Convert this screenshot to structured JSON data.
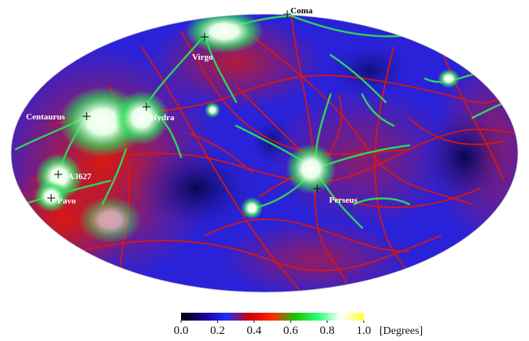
{
  "map": {
    "projection": "mollweide",
    "clusters": [
      {
        "name": "Coma",
        "label_dark": true
      },
      {
        "name": "Virgo"
      },
      {
        "name": "Centaurus"
      },
      {
        "name": "Hydra"
      },
      {
        "name": "A3627"
      },
      {
        "name": "Pavo"
      },
      {
        "name": "Perseus"
      }
    ]
  },
  "colorbar": {
    "ticks": [
      "0.0",
      "0.2",
      "0.4",
      "0.6",
      "0.8",
      "1.0"
    ],
    "unit": "[Degrees]",
    "range": [
      0.0,
      1.0
    ],
    "colors": [
      "#000000",
      "#1a0090",
      "#1f2bff",
      "#d10000",
      "#ff2a00",
      "#17c400",
      "#2bff79",
      "#ffffff",
      "#ffff33"
    ]
  },
  "palette": {
    "background_blue": "#2a22d8",
    "deep_blue": "#0b0a78",
    "filament_red": "#e01808",
    "filament_green": "#2cde5a",
    "cluster_white": "#ffffff"
  }
}
